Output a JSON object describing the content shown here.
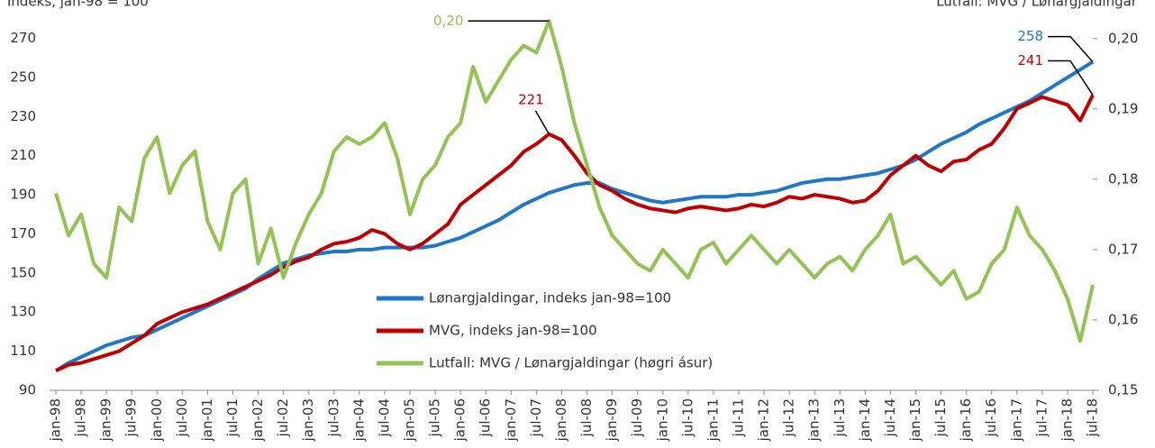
{
  "chart_data": {
    "type": "line",
    "title": "Indeks, jan-98 = 100",
    "y2_title": "Lutfall: MVG / Lønargjaldingar",
    "categories": [
      "jan-98",
      null,
      "jul-98",
      null,
      "jan-99",
      null,
      "jul-99",
      null,
      "jan-00",
      null,
      "jul-00",
      null,
      "jan-01",
      null,
      "jul-01",
      null,
      "jan-02",
      null,
      "jul-02",
      null,
      "jan-03",
      null,
      "jul-03",
      null,
      "jan-04",
      null,
      "jul-04",
      null,
      "jan-05",
      null,
      "jul-05",
      null,
      "jan-06",
      null,
      "jul-06",
      null,
      "jan-07",
      null,
      "jul-07",
      null,
      "jan-08",
      null,
      "jul-08",
      null,
      "jan-09",
      null,
      "jul-09",
      null,
      "jan-10",
      null,
      "jul-10",
      null,
      "jan-11",
      null,
      "jul-11",
      null,
      "jan-12",
      null,
      "jul-12",
      null,
      "jan-13",
      null,
      "jul-13",
      null,
      "jan-14",
      null,
      "jul-14",
      null,
      "jan-15",
      null,
      "jul-15",
      null,
      "jan-16",
      null,
      "jul-16",
      null,
      "jan-17",
      null,
      "jul-17",
      null,
      "jan-18",
      null,
      "jul-18"
    ],
    "ylim": [
      90,
      285
    ],
    "yticks": [
      90,
      110,
      130,
      150,
      170,
      190,
      210,
      230,
      250,
      270
    ],
    "y2lim": [
      0.15,
      0.2042
    ],
    "y2ticks": [
      {
        "value": 0.15,
        "label": "0,15"
      },
      {
        "value": 0.16,
        "label": "0,16"
      },
      {
        "value": 0.17,
        "label": "0,17"
      },
      {
        "value": 0.18,
        "label": "0,18"
      },
      {
        "value": 0.19,
        "label": "0,19"
      },
      {
        "value": 0.2,
        "label": "0,20"
      }
    ],
    "series": [
      {
        "name": "Lønargjaldingar, indeks jan-98=100",
        "color": "#1f77c9",
        "values": [
          100,
          104,
          107,
          110,
          113,
          115,
          117,
          118,
          121,
          124,
          127,
          130,
          133,
          136,
          139,
          142,
          147,
          151,
          155,
          157,
          159,
          160,
          161,
          161,
          162,
          162,
          163,
          163,
          163,
          163,
          164,
          166,
          168,
          171,
          174,
          177,
          181,
          185,
          188,
          191,
          193,
          195,
          196,
          196,
          193,
          191,
          189,
          187,
          186,
          187,
          188,
          189,
          189,
          189,
          190,
          190,
          191,
          192,
          194,
          196,
          197,
          198,
          198,
          199,
          200,
          201,
          203,
          205,
          208,
          212,
          216,
          219,
          222,
          226,
          229,
          232,
          235,
          238,
          242,
          246,
          250,
          254,
          258
        ],
        "value_labels": [
          null,
          null,
          null,
          null,
          null,
          null,
          null,
          null,
          null,
          null,
          null,
          null,
          null,
          null,
          null,
          null,
          null,
          null,
          null,
          null,
          null,
          null,
          null,
          null,
          null,
          null,
          null,
          null,
          null,
          null,
          null,
          null,
          null,
          null,
          null,
          null,
          null,
          null,
          null,
          null,
          null,
          null,
          null,
          null,
          null,
          null,
          null,
          null,
          null,
          null,
          null,
          null,
          null,
          null,
          null,
          null,
          null,
          null,
          null,
          null,
          null,
          null,
          null,
          null,
          null,
          null,
          null,
          null,
          null,
          null,
          null,
          null,
          null,
          null,
          null,
          null,
          null,
          null,
          null,
          null,
          null,
          null,
          "258"
        ]
      },
      {
        "name": "MVG, indeks jan-98=100",
        "color": "#c00000",
        "values": [
          100,
          103,
          104,
          106,
          108,
          110,
          114,
          118,
          124,
          127,
          130,
          132,
          134,
          137,
          140,
          143,
          146,
          149,
          153,
          156,
          158,
          162,
          165,
          166,
          168,
          172,
          170,
          165,
          162,
          165,
          170,
          175,
          185,
          190,
          195,
          200,
          205,
          212,
          216,
          221,
          218,
          210,
          201,
          195,
          192,
          188,
          185,
          183,
          182,
          181,
          183,
          184,
          183,
          182,
          183,
          185,
          184,
          186,
          189,
          188,
          190,
          189,
          188,
          186,
          187,
          192,
          200,
          205,
          210,
          205,
          202,
          207,
          208,
          213,
          216,
          224,
          234,
          237,
          240,
          238,
          236,
          228,
          241
        ],
        "value_labels": [
          null,
          null,
          null,
          null,
          null,
          null,
          null,
          null,
          null,
          null,
          null,
          null,
          null,
          null,
          null,
          null,
          null,
          null,
          null,
          null,
          null,
          null,
          null,
          null,
          null,
          null,
          null,
          null,
          null,
          null,
          null,
          null,
          null,
          null,
          null,
          null,
          null,
          null,
          null,
          "221",
          null,
          null,
          null,
          null,
          null,
          null,
          null,
          null,
          null,
          null,
          null,
          null,
          null,
          null,
          null,
          null,
          null,
          null,
          null,
          null,
          null,
          null,
          null,
          null,
          null,
          null,
          null,
          null,
          null,
          null,
          null,
          null,
          null,
          null,
          null,
          null,
          null,
          null,
          null,
          null,
          null,
          null,
          "241"
        ]
      },
      {
        "name": "Lutfall: MVG / Lønargjaldingar (høgri ásur)",
        "color": "#92c353",
        "axis": "y2",
        "values": [
          0.178,
          0.172,
          0.175,
          0.168,
          0.166,
          0.176,
          0.174,
          0.183,
          0.186,
          0.178,
          0.182,
          0.184,
          0.174,
          0.17,
          0.178,
          0.18,
          0.168,
          0.173,
          0.166,
          0.171,
          0.175,
          0.178,
          0.184,
          0.186,
          0.185,
          0.186,
          0.188,
          0.183,
          0.175,
          0.18,
          0.182,
          0.186,
          0.188,
          0.196,
          0.191,
          0.194,
          0.197,
          0.199,
          0.198,
          0.2025,
          0.196,
          0.188,
          0.182,
          0.176,
          0.172,
          0.17,
          0.168,
          0.167,
          0.17,
          0.168,
          0.166,
          0.17,
          0.171,
          0.168,
          0.17,
          0.172,
          0.17,
          0.168,
          0.17,
          0.168,
          0.166,
          0.168,
          0.169,
          0.167,
          0.17,
          0.172,
          0.175,
          0.168,
          0.169,
          0.167,
          0.165,
          0.167,
          0.163,
          0.164,
          0.168,
          0.17,
          0.176,
          0.172,
          0.17,
          0.167,
          0.163,
          0.157,
          0.165
        ],
        "value_labels": [
          null,
          null,
          null,
          null,
          null,
          null,
          null,
          null,
          null,
          null,
          null,
          null,
          null,
          null,
          null,
          null,
          null,
          null,
          null,
          null,
          null,
          null,
          null,
          null,
          null,
          null,
          null,
          null,
          null,
          null,
          null,
          null,
          null,
          null,
          null,
          null,
          null,
          null,
          null,
          "0,20",
          null,
          null,
          null,
          null,
          null,
          null,
          null,
          null,
          null,
          null,
          null,
          null,
          null,
          null,
          null,
          null,
          null,
          null,
          null,
          null,
          null,
          null,
          null,
          null,
          null,
          null,
          null,
          null,
          null,
          null,
          null,
          null,
          null,
          null,
          null,
          null,
          null,
          null,
          null,
          null,
          null,
          null,
          null
        ]
      }
    ]
  }
}
